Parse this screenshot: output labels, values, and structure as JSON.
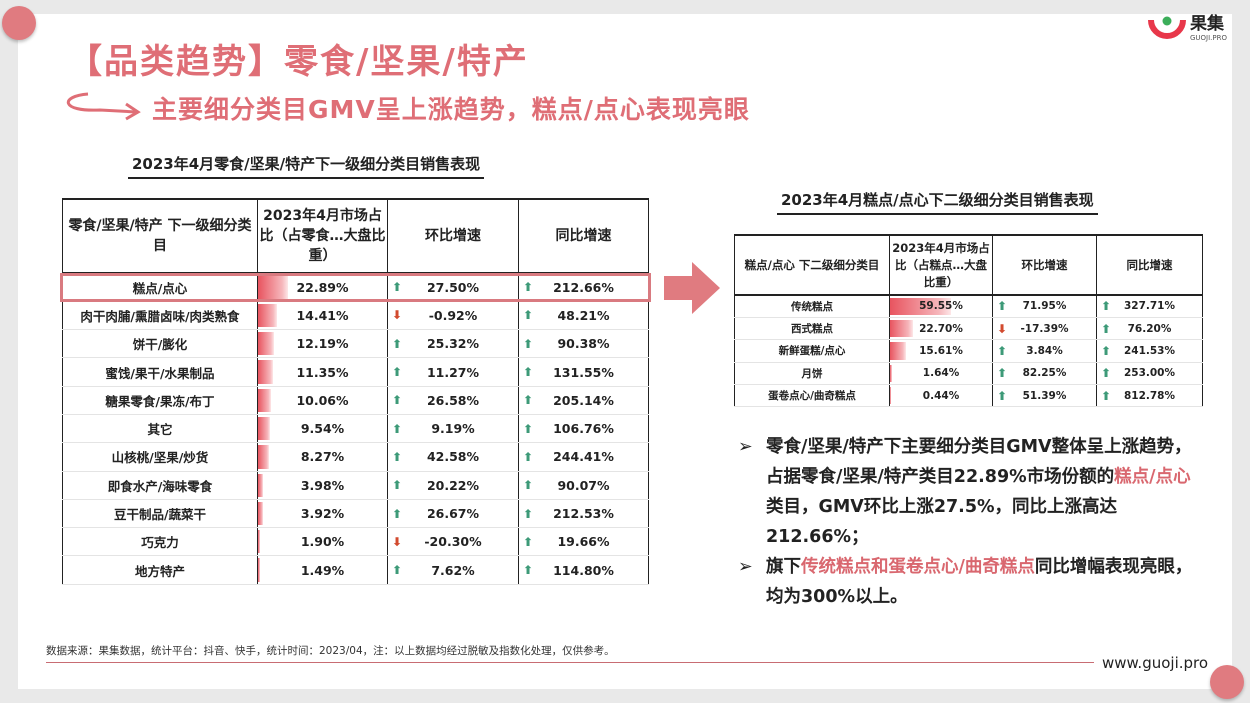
{
  "header": {
    "title": "【品类趋势】零食/坚果/特产",
    "subtitle": "主要细分类目GMV呈上涨趋势，糕点/点心表现亮眼"
  },
  "logo": {
    "cn": "果集",
    "en": "GUOJI.PRO"
  },
  "table1": {
    "caption": "2023年4月零食/坚果/特产下一级细分类目销售表现",
    "headers": [
      "零食/坚果/特产 下一级细分类目",
      "2023年4月市场占比（占零食…大盘比重）",
      "环比增速",
      "同比增速"
    ],
    "rows": [
      {
        "name": "糕点/点心",
        "share": "22.89%",
        "share_value": 22.89,
        "mom": "27.50%",
        "mom_dir": "up",
        "yoy": "212.66%",
        "yoy_dir": "up"
      },
      {
        "name": "肉干肉脯/熏腊卤味/肉类熟食",
        "share": "14.41%",
        "share_value": 14.41,
        "mom": "-0.92%",
        "mom_dir": "down",
        "yoy": "48.21%",
        "yoy_dir": "up"
      },
      {
        "name": "饼干/膨化",
        "share": "12.19%",
        "share_value": 12.19,
        "mom": "25.32%",
        "mom_dir": "up",
        "yoy": "90.38%",
        "yoy_dir": "up"
      },
      {
        "name": "蜜饯/果干/水果制品",
        "share": "11.35%",
        "share_value": 11.35,
        "mom": "11.27%",
        "mom_dir": "up",
        "yoy": "131.55%",
        "yoy_dir": "up"
      },
      {
        "name": "糖果零食/果冻/布丁",
        "share": "10.06%",
        "share_value": 10.06,
        "mom": "26.58%",
        "mom_dir": "up",
        "yoy": "205.14%",
        "yoy_dir": "up"
      },
      {
        "name": "其它",
        "share": "9.54%",
        "share_value": 9.54,
        "mom": "9.19%",
        "mom_dir": "up",
        "yoy": "106.76%",
        "yoy_dir": "up"
      },
      {
        "name": "山核桃/坚果/炒货",
        "share": "8.27%",
        "share_value": 8.27,
        "mom": "42.58%",
        "mom_dir": "up",
        "yoy": "244.41%",
        "yoy_dir": "up"
      },
      {
        "name": "即食水产/海味零食",
        "share": "3.98%",
        "share_value": 3.98,
        "mom": "20.22%",
        "mom_dir": "up",
        "yoy": "90.07%",
        "yoy_dir": "up"
      },
      {
        "name": "豆干制品/蔬菜干",
        "share": "3.92%",
        "share_value": 3.92,
        "mom": "26.67%",
        "mom_dir": "up",
        "yoy": "212.53%",
        "yoy_dir": "up"
      },
      {
        "name": "巧克力",
        "share": "1.90%",
        "share_value": 1.9,
        "mom": "-20.30%",
        "mom_dir": "down",
        "yoy": "19.66%",
        "yoy_dir": "up"
      },
      {
        "name": "地方特产",
        "share": "1.49%",
        "share_value": 1.49,
        "mom": "7.62%",
        "mom_dir": "up",
        "yoy": "114.80%",
        "yoy_dir": "up"
      }
    ]
  },
  "table2": {
    "caption": "2023年4月糕点/点心下二级细分类目销售表现",
    "headers": [
      "糕点/点心 下二级细分类目",
      "2023年4月市场占比（占糕点…大盘比重）",
      "环比增速",
      "同比增速"
    ],
    "rows": [
      {
        "name": "传统糕点",
        "share": "59.55%",
        "share_value": 59.55,
        "mom": "71.95%",
        "mom_dir": "up",
        "yoy": "327.71%",
        "yoy_dir": "up"
      },
      {
        "name": "西式糕点",
        "share": "22.70%",
        "share_value": 22.7,
        "mom": "-17.39%",
        "mom_dir": "down",
        "yoy": "76.20%",
        "yoy_dir": "up"
      },
      {
        "name": "新鲜蛋糕/点心",
        "share": "15.61%",
        "share_value": 15.61,
        "mom": "3.84%",
        "mom_dir": "up",
        "yoy": "241.53%",
        "yoy_dir": "up"
      },
      {
        "name": "月饼",
        "share": "1.64%",
        "share_value": 1.64,
        "mom": "82.25%",
        "mom_dir": "up",
        "yoy": "253.00%",
        "yoy_dir": "up"
      },
      {
        "name": "蛋卷点心/曲奇糕点",
        "share": "0.44%",
        "share_value": 0.44,
        "mom": "51.39%",
        "mom_dir": "up",
        "yoy": "812.78%",
        "yoy_dir": "up"
      }
    ]
  },
  "bullets": {
    "b1_a": "零食/坚果/特产下主要细分类目GMV整体呈上涨趋势，占据零食/坚果/特产类目22.89%市场份额的",
    "b1_hl": "糕点/点心",
    "b1_b": "类目，GMV环比上涨27.5%，同比上涨高达212.66%；",
    "b2_a": "旗下",
    "b2_hl": "传统糕点和蛋卷点心/曲奇糕点",
    "b2_b": "同比增幅表现亮眼，均为300%以上。"
  },
  "footer": {
    "note": "数据来源：果集数据，统计平台：抖音、快手，统计时间：2023/04，注：以上数据均经过脱敏及指数化处理，仅供参考。",
    "site": "www.guoji.pro"
  },
  "colors": {
    "accent": "#df6e76",
    "bar": "#e8545f",
    "up": "#3d9a78",
    "down": "#d24a2e"
  }
}
